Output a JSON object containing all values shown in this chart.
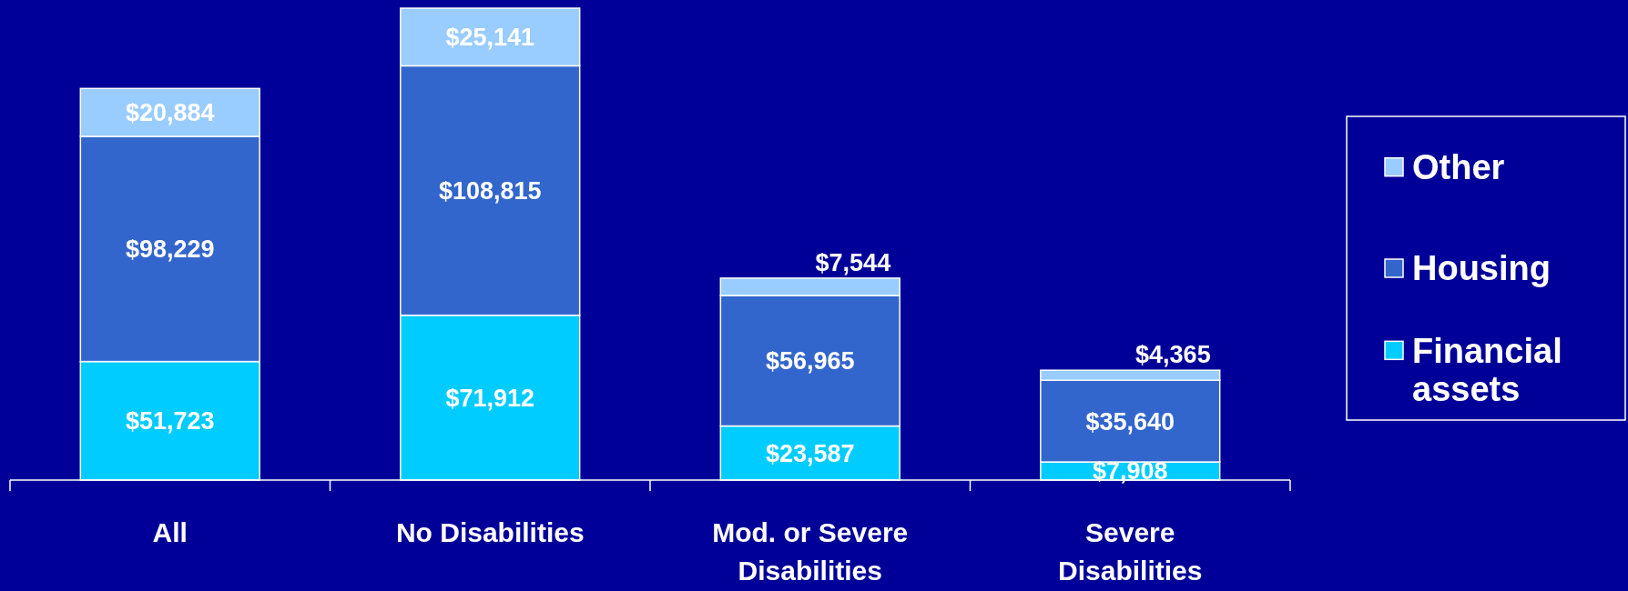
{
  "chart_data": {
    "type": "bar",
    "stacked": true,
    "categories": [
      "All",
      "No Disabilities",
      "Mod. or Severe Disabilities",
      "Severe Disabilities"
    ],
    "legend": "right",
    "series": [
      {
        "name": "Financial assets",
        "color": "#00ccff",
        "values": [
          51723,
          71912,
          23587,
          7908
        ],
        "value_labels": [
          "$51,723",
          "$71,912",
          "$23,587",
          "$7,908"
        ]
      },
      {
        "name": "Housing",
        "color": "#3366cc",
        "values": [
          98229,
          108815,
          56965,
          35640
        ],
        "value_labels": [
          "$98,229",
          "$108,815",
          "$56,965",
          "$35,640"
        ]
      },
      {
        "name": "Other",
        "color": "#99ccff",
        "values": [
          20884,
          25141,
          7544,
          4365
        ],
        "value_labels": [
          "$20,884",
          "$25,141",
          "$7,544",
          "$4,365"
        ]
      }
    ]
  }
}
